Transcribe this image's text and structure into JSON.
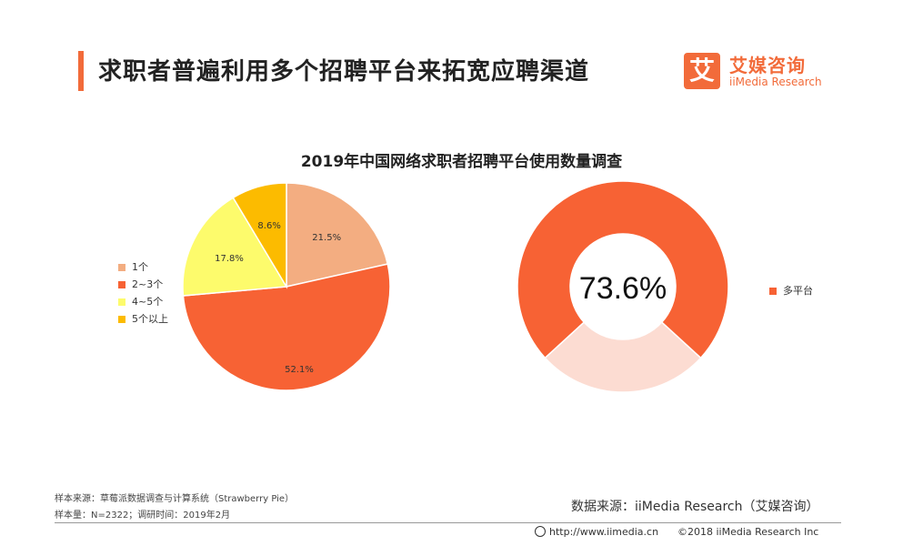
{
  "header": {
    "title": "求职者普遍利用多个招聘平台来拓宽应聘渠道"
  },
  "logo": {
    "icon_char": "艾",
    "name_cn": "艾媒咨询",
    "name_en": "iiMedia Research"
  },
  "chart_data": [
    {
      "type": "pie",
      "title": "2019年中国网络求职者招聘平台使用数量调查",
      "categories": [
        "1个",
        "2~3个",
        "4~5个",
        "5个以上"
      ],
      "values": [
        21.5,
        52.1,
        17.8,
        8.6
      ],
      "labels": [
        "21.5%",
        "52.1%",
        "17.8%",
        "8.6%"
      ],
      "colors": [
        "#f3ad81",
        "#f76234",
        "#fdfb6c",
        "#fcbb00"
      ],
      "legend_position": "left"
    },
    {
      "type": "pie",
      "subtype": "donut",
      "categories": [
        "多平台",
        ""
      ],
      "values": [
        73.6,
        26.4
      ],
      "center_label": "73.6%",
      "colors": [
        "#f76234",
        "#fcdcd2"
      ],
      "legend_position": "right"
    }
  ],
  "footer": {
    "sample_source": "样本来源：草莓派数据调查与计算系统（Strawberry Pie）",
    "sample_size": "样本量：N=2322；调研时间：2019年2月",
    "data_source": "数据来源：iiMedia Research（艾媒咨询）",
    "url": "http://www.iimedia.cn",
    "copyright": "©2018  iiMedia Research  Inc"
  }
}
